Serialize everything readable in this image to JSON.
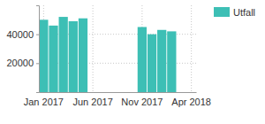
{
  "chart_data": {
    "type": "bar",
    "categories": [
      "Jan 2017",
      null,
      null,
      null,
      null,
      "Jun 2017",
      null,
      null,
      null,
      null,
      "Nov 2017",
      null,
      null,
      null,
      null,
      "Apr 2018"
    ],
    "series": [
      {
        "name": "Utfall",
        "color": "#3dbfb5",
        "values": [
          50000,
          46000,
          52000,
          49000,
          51000,
          null,
          null,
          null,
          null,
          null,
          45000,
          40000,
          43000,
          42000,
          null,
          null
        ]
      }
    ],
    "ylim": [
      0,
      60000
    ],
    "yticks": [
      20000,
      40000
    ],
    "grid": true,
    "legend": "top-right"
  }
}
